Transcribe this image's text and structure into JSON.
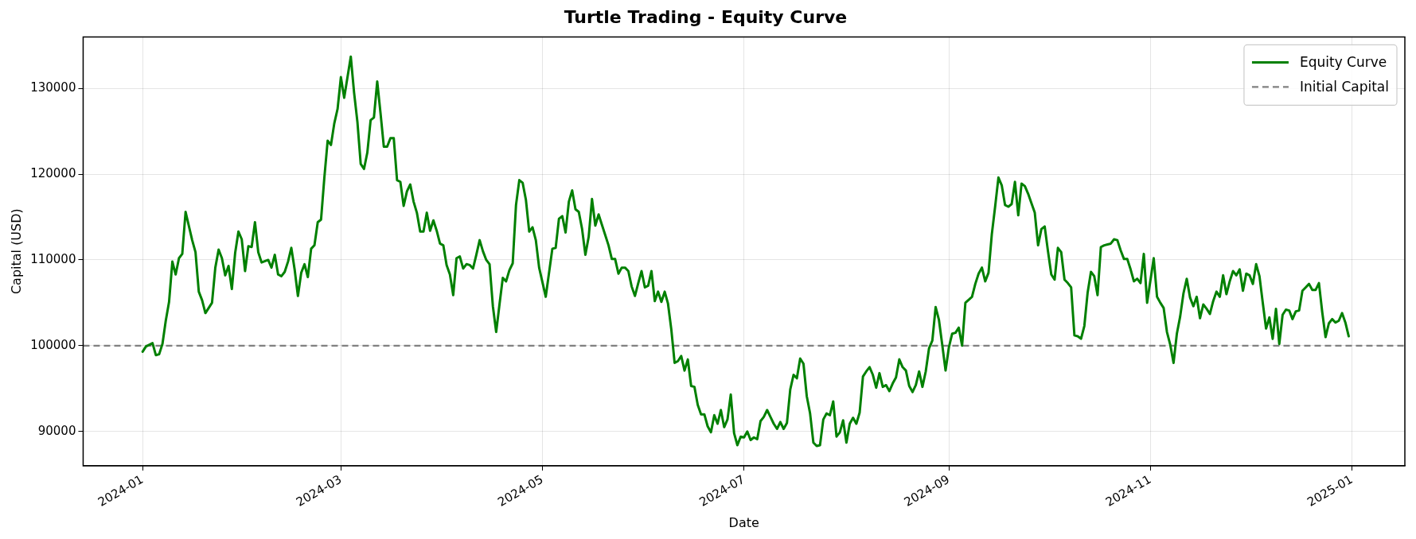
{
  "chart_data": {
    "type": "line",
    "title": "Turtle Trading - Equity Curve",
    "xlabel": "Date",
    "ylabel": "Capital (USD)",
    "x": [
      "2024-01-01",
      "2024-01-02",
      "2024-01-04",
      "2024-01-05",
      "2024-01-06",
      "2024-01-07",
      "2024-01-08",
      "2024-01-09",
      "2024-01-10",
      "2024-01-11",
      "2024-01-12",
      "2024-01-13",
      "2024-01-14",
      "2024-01-16",
      "2024-01-17",
      "2024-01-18",
      "2024-01-19",
      "2024-01-20",
      "2024-01-21",
      "2024-01-22",
      "2024-01-23",
      "2024-01-24",
      "2024-01-25",
      "2024-01-26",
      "2024-01-27",
      "2024-01-28",
      "2024-01-29",
      "2024-01-30",
      "2024-01-31",
      "2024-02-01",
      "2024-02-02",
      "2024-02-03",
      "2024-02-04",
      "2024-02-05",
      "2024-02-06",
      "2024-02-08",
      "2024-02-09",
      "2024-02-10",
      "2024-02-11",
      "2024-02-12",
      "2024-02-13",
      "2024-02-14",
      "2024-02-15",
      "2024-02-16",
      "2024-02-17",
      "2024-02-18",
      "2024-02-19",
      "2024-02-20",
      "2024-02-21",
      "2024-02-22",
      "2024-02-23",
      "2024-02-24",
      "2024-02-25",
      "2024-02-26",
      "2024-02-27",
      "2024-02-28",
      "2024-02-29",
      "2024-03-01",
      "2024-03-02",
      "2024-03-04",
      "2024-03-05",
      "2024-03-06",
      "2024-03-07",
      "2024-03-08",
      "2024-03-09",
      "2024-03-10",
      "2024-03-11",
      "2024-03-12",
      "2024-03-13",
      "2024-03-14",
      "2024-03-15",
      "2024-03-16",
      "2024-03-17",
      "2024-03-18",
      "2024-03-19",
      "2024-03-20",
      "2024-03-21",
      "2024-03-22",
      "2024-03-23",
      "2024-03-24",
      "2024-03-25",
      "2024-03-26",
      "2024-03-27",
      "2024-03-28",
      "2024-03-29",
      "2024-03-30",
      "2024-03-31",
      "2024-04-01",
      "2024-04-02",
      "2024-04-03",
      "2024-04-04",
      "2024-04-05",
      "2024-04-06",
      "2024-04-07",
      "2024-04-08",
      "2024-04-09",
      "2024-04-10",
      "2024-04-11",
      "2024-04-12",
      "2024-04-13",
      "2024-04-14",
      "2024-04-15",
      "2024-04-16",
      "2024-04-17",
      "2024-04-18",
      "2024-04-19",
      "2024-04-20",
      "2024-04-21",
      "2024-04-22",
      "2024-04-23",
      "2024-04-24",
      "2024-04-25",
      "2024-04-26",
      "2024-04-27",
      "2024-04-28",
      "2024-04-29",
      "2024-04-30",
      "2024-05-02",
      "2024-05-04",
      "2024-05-05",
      "2024-05-06",
      "2024-05-07",
      "2024-05-08",
      "2024-05-09",
      "2024-05-10",
      "2024-05-11",
      "2024-05-12",
      "2024-05-13",
      "2024-05-14",
      "2024-05-15",
      "2024-05-16",
      "2024-05-17",
      "2024-05-18",
      "2024-05-19",
      "2024-05-21",
      "2024-05-22",
      "2024-05-23",
      "2024-05-24",
      "2024-05-25",
      "2024-05-26",
      "2024-05-27",
      "2024-05-28",
      "2024-05-29",
      "2024-05-30",
      "2024-05-31",
      "2024-06-01",
      "2024-06-02",
      "2024-06-03",
      "2024-06-04",
      "2024-06-05",
      "2024-06-06",
      "2024-06-07",
      "2024-06-08",
      "2024-06-09",
      "2024-06-10",
      "2024-06-11",
      "2024-06-12",
      "2024-06-13",
      "2024-06-14",
      "2024-06-15",
      "2024-06-16",
      "2024-06-17",
      "2024-06-18",
      "2024-06-19",
      "2024-06-20",
      "2024-06-21",
      "2024-06-22",
      "2024-06-23",
      "2024-06-24",
      "2024-06-25",
      "2024-06-26",
      "2024-06-27",
      "2024-06-28",
      "2024-06-29",
      "2024-06-30",
      "2024-07-01",
      "2024-07-02",
      "2024-07-03",
      "2024-07-04",
      "2024-07-05",
      "2024-07-06",
      "2024-07-07",
      "2024-07-08",
      "2024-07-09",
      "2024-07-10",
      "2024-07-11",
      "2024-07-12",
      "2024-07-13",
      "2024-07-14",
      "2024-07-15",
      "2024-07-16",
      "2024-07-17",
      "2024-07-18",
      "2024-07-19",
      "2024-07-20",
      "2024-07-21",
      "2024-07-22",
      "2024-07-23",
      "2024-07-24",
      "2024-07-25",
      "2024-07-26",
      "2024-07-27",
      "2024-07-28",
      "2024-07-29",
      "2024-07-30",
      "2024-07-31",
      "2024-08-01",
      "2024-08-02",
      "2024-08-03",
      "2024-08-04",
      "2024-08-05",
      "2024-08-06",
      "2024-08-07",
      "2024-08-08",
      "2024-08-09",
      "2024-08-10",
      "2024-08-11",
      "2024-08-12",
      "2024-08-13",
      "2024-08-14",
      "2024-08-15",
      "2024-08-16",
      "2024-08-17",
      "2024-08-18",
      "2024-08-19",
      "2024-08-20",
      "2024-08-21",
      "2024-08-22",
      "2024-08-23",
      "2024-08-24",
      "2024-08-25",
      "2024-08-26",
      "2024-08-27",
      "2024-08-28",
      "2024-08-29",
      "2024-08-30",
      "2024-08-31",
      "2024-09-01",
      "2024-09-02",
      "2024-09-03",
      "2024-09-04",
      "2024-09-05",
      "2024-09-06",
      "2024-09-08",
      "2024-09-09",
      "2024-09-10",
      "2024-09-11",
      "2024-09-12",
      "2024-09-13",
      "2024-09-14",
      "2024-09-15",
      "2024-09-16",
      "2024-09-17",
      "2024-09-18",
      "2024-09-19",
      "2024-09-20",
      "2024-09-21",
      "2024-09-22",
      "2024-09-23",
      "2024-09-24",
      "2024-09-25",
      "2024-09-27",
      "2024-09-28",
      "2024-09-29",
      "2024-09-30",
      "2024-10-01",
      "2024-10-02",
      "2024-10-03",
      "2024-10-04",
      "2024-10-05",
      "2024-10-06",
      "2024-10-07",
      "2024-10-08",
      "2024-10-09",
      "2024-10-10",
      "2024-10-11",
      "2024-10-12",
      "2024-10-13",
      "2024-10-14",
      "2024-10-15",
      "2024-10-16",
      "2024-10-17",
      "2024-10-18",
      "2024-10-19",
      "2024-10-20",
      "2024-10-21",
      "2024-10-22",
      "2024-10-23",
      "2024-10-24",
      "2024-10-25",
      "2024-10-26",
      "2024-10-27",
      "2024-10-28",
      "2024-10-29",
      "2024-10-30",
      "2024-10-31",
      "2024-11-01",
      "2024-11-02",
      "2024-11-03",
      "2024-11-04",
      "2024-11-05",
      "2024-11-06",
      "2024-11-07",
      "2024-11-08",
      "2024-11-09",
      "2024-11-10",
      "2024-11-11",
      "2024-11-12",
      "2024-11-13",
      "2024-11-14",
      "2024-11-15",
      "2024-11-16",
      "2024-11-17",
      "2024-11-18",
      "2024-11-19",
      "2024-11-20",
      "2024-11-21",
      "2024-11-22",
      "2024-11-23",
      "2024-11-24",
      "2024-11-25",
      "2024-11-26",
      "2024-11-27",
      "2024-11-28",
      "2024-11-29",
      "2024-11-30",
      "2024-12-01",
      "2024-12-02",
      "2024-12-03",
      "2024-12-04",
      "2024-12-05",
      "2024-12-06",
      "2024-12-07",
      "2024-12-08",
      "2024-12-09",
      "2024-12-10",
      "2024-12-11",
      "2024-12-12",
      "2024-12-13",
      "2024-12-14",
      "2024-12-15",
      "2024-12-16",
      "2024-12-17",
      "2024-12-18",
      "2024-12-19",
      "2024-12-20",
      "2024-12-21",
      "2024-12-22",
      "2024-12-23",
      "2024-12-24",
      "2024-12-25",
      "2024-12-26",
      "2024-12-27",
      "2024-12-28",
      "2024-12-29",
      "2024-12-30",
      "2024-12-31"
    ],
    "series": [
      {
        "name": "Equity Curve",
        "color": "#008000",
        "values": [
          99300,
          99900,
          100300,
          98900,
          99000,
          100200,
          102900,
          105100,
          109800,
          108300,
          110200,
          110700,
          115600,
          112300,
          110900,
          106300,
          105300,
          103800,
          104400,
          105000,
          109100,
          111200,
          110200,
          108200,
          109300,
          106600,
          110800,
          113300,
          112400,
          108700,
          111600,
          111500,
          114400,
          110900,
          109700,
          110000,
          109100,
          110600,
          108300,
          108100,
          108600,
          109800,
          111400,
          108900,
          105800,
          108500,
          109500,
          108000,
          111300,
          111700,
          114400,
          114700,
          119600,
          123900,
          123400,
          125900,
          127600,
          131300,
          128900,
          133700,
          129500,
          126100,
          121200,
          120600,
          122500,
          126300,
          126600,
          130800,
          127100,
          123200,
          123200,
          124200,
          124200,
          119300,
          119100,
          116300,
          118000,
          118800,
          116800,
          115500,
          113300,
          113300,
          115500,
          113400,
          114600,
          113400,
          111900,
          111700,
          109400,
          108300,
          105900,
          110200,
          110400,
          109000,
          109500,
          109400,
          109000,
          110600,
          112300,
          111000,
          110000,
          109500,
          104600,
          101600,
          104800,
          107900,
          107500,
          108800,
          109600,
          116400,
          119300,
          119000,
          117000,
          113300,
          113800,
          112300,
          109100,
          105700,
          111300,
          111400,
          114800,
          115100,
          113200,
          116800,
          118100,
          115900,
          115600,
          113600,
          110600,
          112700,
          117100,
          114000,
          115300,
          114100,
          111700,
          110100,
          110100,
          108400,
          109100,
          109100,
          108700,
          106900,
          105800,
          107300,
          108700,
          106800,
          107000,
          108700,
          105200,
          106300,
          105100,
          106300,
          104900,
          101900,
          98000,
          98200,
          98800,
          97100,
          98400,
          95300,
          95200,
          93100,
          92000,
          92000,
          90600,
          89900,
          91900,
          90900,
          92500,
          90500,
          91400,
          94300,
          89800,
          88400,
          89400,
          89300,
          90000,
          89000,
          89300,
          89100,
          91200,
          91700,
          92500,
          91700,
          90900,
          90300,
          91100,
          90300,
          91000,
          94900,
          96600,
          96200,
          98500,
          97900,
          94100,
          92100,
          88700,
          88300,
          88400,
          91400,
          92100,
          91900,
          93500,
          89400,
          89900,
          91300,
          88700,
          90900,
          91600,
          90900,
          92200,
          96400,
          97000,
          97500,
          96600,
          95100,
          96800,
          95200,
          95400,
          94700,
          95600,
          96300,
          98400,
          97500,
          97100,
          95300,
          94600,
          95400,
          97000,
          95200,
          97000,
          99700,
          100600,
          104500,
          103000,
          100100,
          97100,
          99800,
          101400,
          101500,
          102100,
          100000,
          105000,
          105700,
          107200,
          108400,
          109100,
          107500,
          108500,
          113000,
          116200,
          119600,
          118700,
          116400,
          116200,
          116500,
          119100,
          115200,
          118900,
          118600,
          117700,
          115500,
          111700,
          113600,
          113900,
          111000,
          108300,
          107700,
          111400,
          110900,
          107700,
          107300,
          106800,
          101200,
          101100,
          100800,
          102300,
          106200,
          108600,
          108100,
          105900,
          111500,
          111700,
          111800,
          111900,
          112400,
          112300,
          111100,
          110100,
          110100,
          108900,
          107500,
          107800,
          107300,
          110700,
          105000,
          107600,
          110200,
          105700,
          105000,
          104400,
          101600,
          100100,
          98000,
          101400,
          103400,
          106100,
          107800,
          105600,
          104600,
          105700,
          103200,
          104800,
          104300,
          103700,
          105200,
          106300,
          105700,
          108200,
          106000,
          107500,
          108700,
          108200,
          108900,
          106400,
          108400,
          108200,
          107200,
          109500,
          108100,
          105000,
          102000,
          103300,
          100800,
          104300,
          100200,
          103600,
          104200,
          104100,
          103100,
          104000,
          104100,
          106400,
          106800,
          107200,
          106500,
          106500,
          107300,
          103900,
          101000,
          102600,
          103100,
          102700,
          102900,
          103800,
          102700,
          101100
        ]
      }
    ],
    "ref_lines": [
      {
        "axis": "y",
        "value": 100000,
        "label": "Initial Capital",
        "color": "#808080",
        "line_style": "dashed"
      }
    ],
    "xlim": [
      "2023-12-14",
      "2025-01-17"
    ],
    "xticks": [
      "2024-01",
      "2024-03",
      "2024-05",
      "2024-07",
      "2024-09",
      "2024-11",
      "2025-01"
    ],
    "ylim": [
      86000,
      136000
    ],
    "yticks": [
      90000,
      100000,
      110000,
      120000,
      130000
    ],
    "grid": true,
    "legend": "top right"
  }
}
